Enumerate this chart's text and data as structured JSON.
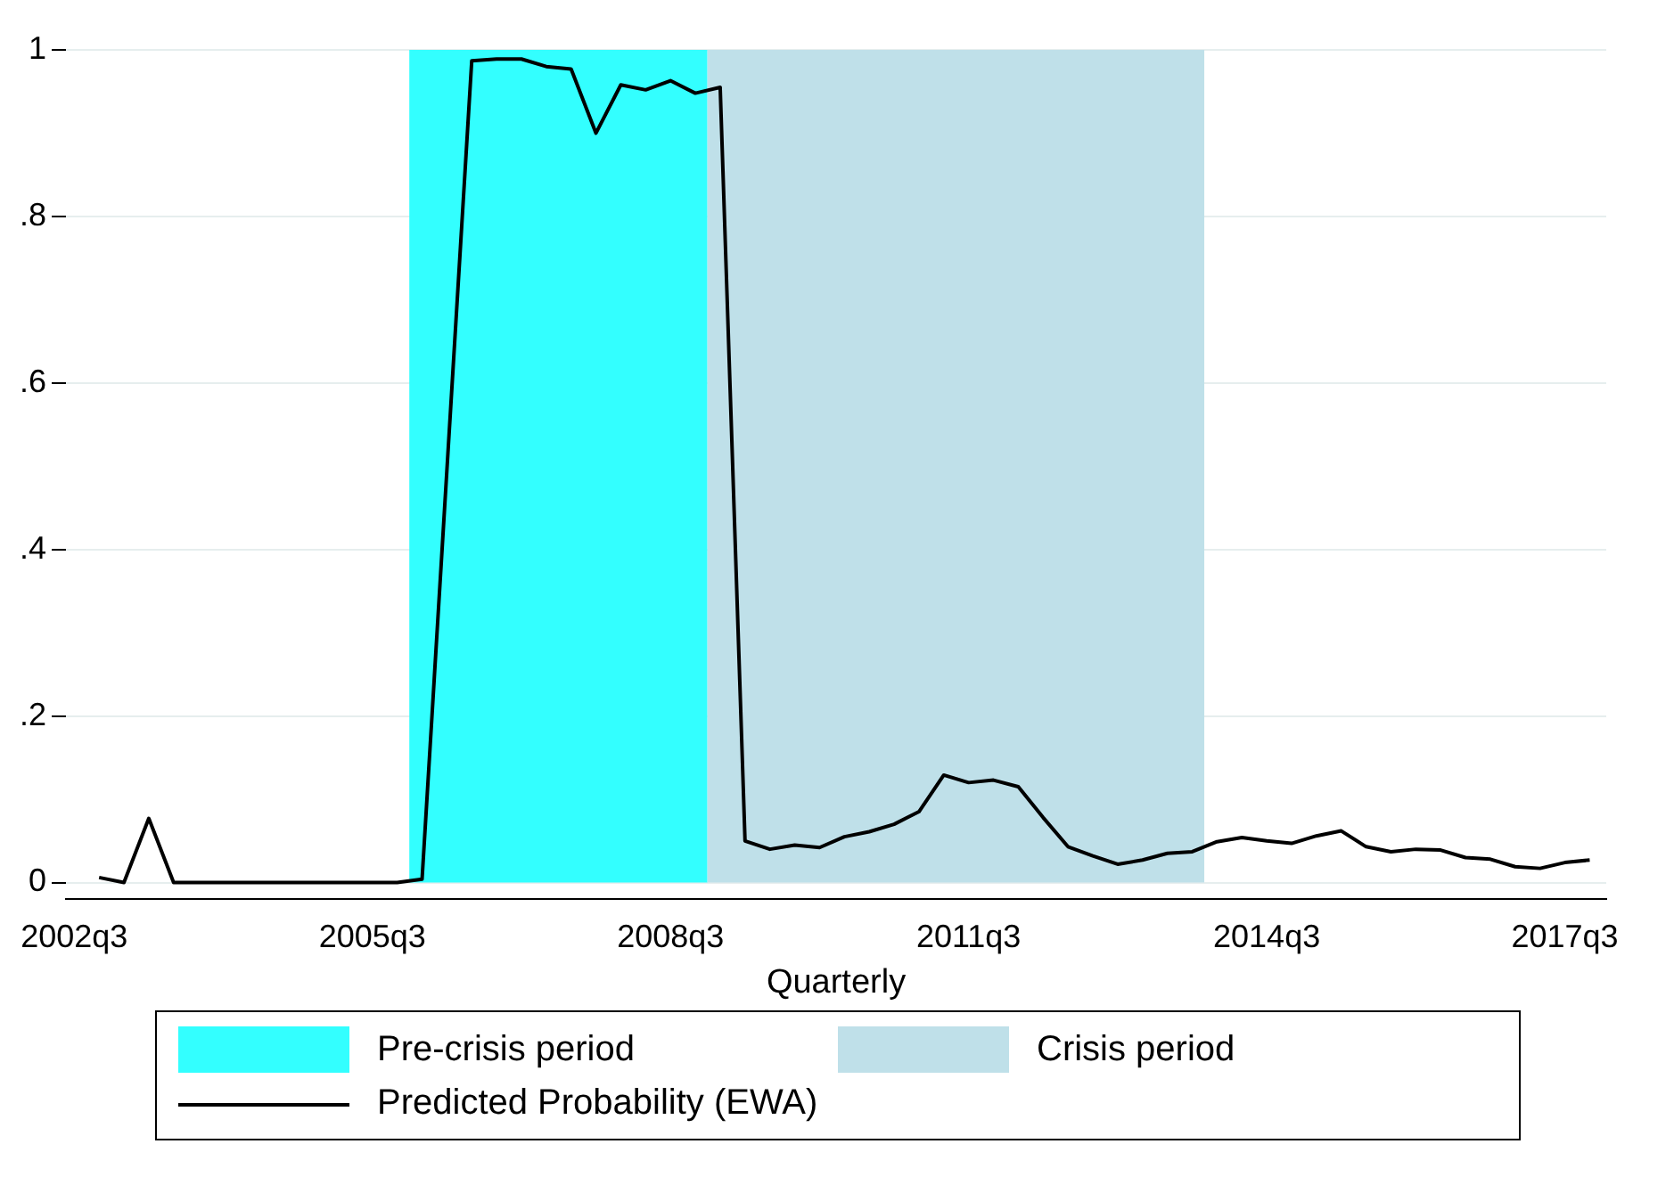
{
  "chart_data": {
    "type": "line",
    "xlabel": "Quarterly",
    "xlim": [
      "2002-06",
      "2017-12"
    ],
    "xticks": [
      {
        "value": "2002-07",
        "label": "2002q3"
      },
      {
        "value": "2005-07",
        "label": "2005q3"
      },
      {
        "value": "2008-07",
        "label": "2008q3"
      },
      {
        "value": "2011-07",
        "label": "2011q3"
      },
      {
        "value": "2014-07",
        "label": "2014q3"
      },
      {
        "value": "2017-07",
        "label": "2017q3"
      }
    ],
    "ylim": [
      -0.02,
      1
    ],
    "yticks": [
      0,
      {
        "value": 0.2,
        "label": ".2"
      },
      {
        "value": 0.4,
        "label": ".4"
      },
      {
        "value": 0.6,
        "label": ".6"
      },
      {
        "value": 0.8,
        "label": ".8"
      },
      1
    ],
    "grid": "y",
    "legend": "bottom",
    "marker": "none",
    "line_style": "solid",
    "bands": [
      {
        "axis": "x",
        "from": "2005-11-15",
        "to": "2008-11-15",
        "label": "Pre-crisis period",
        "color": "#33ffff"
      },
      {
        "axis": "x",
        "from": "2008-11-15",
        "to": "2013-11-15",
        "label": "Crisis period",
        "color": "#bfe0e9"
      }
    ],
    "series": [
      {
        "name": "Predicted Probability (EWA)",
        "color": "#000000",
        "x": [
          "2002-10",
          "2003-01",
          "2003-04",
          "2003-07",
          "2003-10",
          "2004-01",
          "2004-04",
          "2004-07",
          "2004-10",
          "2005-01",
          "2005-04",
          "2005-07",
          "2005-10",
          "2006-01",
          "2006-07",
          "2006-10",
          "2007-01",
          "2007-04",
          "2007-07",
          "2007-10",
          "2008-01",
          "2008-04",
          "2008-07",
          "2008-10",
          "2009-01",
          "2009-04",
          "2009-07",
          "2009-10",
          "2010-01",
          "2010-04",
          "2010-07",
          "2010-10",
          "2011-01",
          "2011-04",
          "2011-07",
          "2011-10",
          "2012-01",
          "2012-04",
          "2012-07",
          "2012-10",
          "2013-01",
          "2013-04",
          "2013-07",
          "2013-10",
          "2014-01",
          "2014-04",
          "2014-07",
          "2014-10",
          "2015-01",
          "2015-04",
          "2015-07",
          "2015-10",
          "2016-01",
          "2016-04",
          "2016-07",
          "2016-10",
          "2017-01",
          "2017-04",
          "2017-07",
          "2017-10"
        ],
        "values": [
          0.006,
          0,
          0.077,
          0,
          0,
          0,
          0,
          0,
          0,
          0,
          0,
          0,
          0,
          0.004,
          0.987,
          0.989,
          0.989,
          0.98,
          0.977,
          0.9,
          0.958,
          0.952,
          0.963,
          0.948,
          0.955,
          0.05,
          0.04,
          0.045,
          0.042,
          0.055,
          0.061,
          0.07,
          0.085,
          0.129,
          0.12,
          0.123,
          0.115,
          0.078,
          0.043,
          0.032,
          0.022,
          0.027,
          0.035,
          0.037,
          0.049,
          0.054,
          0.05,
          0.047,
          0.056,
          0.062,
          0.043,
          0.037,
          0.04,
          0.039,
          0.03,
          0.028,
          0.019,
          0.017,
          0.024,
          0.027
        ]
      }
    ]
  }
}
